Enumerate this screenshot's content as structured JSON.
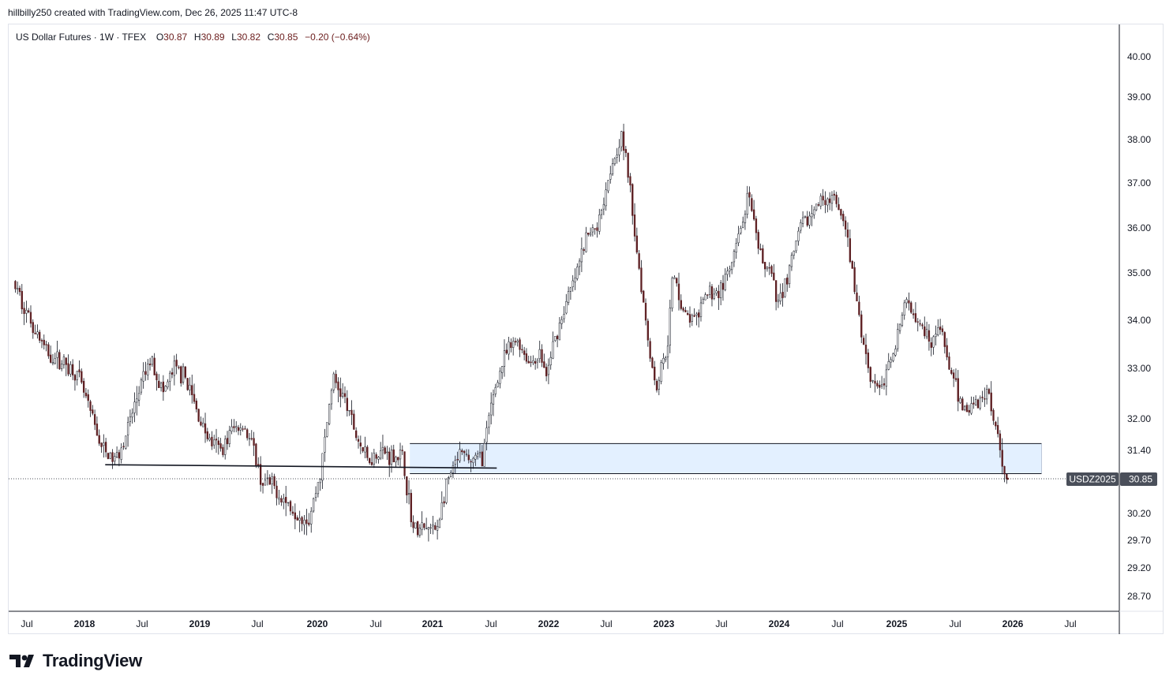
{
  "header": {
    "attribution": "hillbilly250 created with TradingView.com, Dec 26, 2025 11:47 UTC-8"
  },
  "legend": {
    "symbol": "US Dollar Futures · 1W · TFEX",
    "open_label": "O",
    "open": "30.87",
    "high_label": "H",
    "high": "30.89",
    "low_label": "L",
    "low": "30.82",
    "close_label": "C",
    "close": "30.85",
    "change": "−0.20 (−0.64%)"
  },
  "brand": {
    "name": "TradingView"
  },
  "price_tag": {
    "symbol": "USDZ2025",
    "price": "30.85"
  },
  "chart_data": {
    "type": "candlestick",
    "timeframe": "1W",
    "x_range": [
      "2017-06",
      "2026-08"
    ],
    "ylim": [
      28.45,
      40.6
    ],
    "y_ticks": [
      "40.00",
      "39.00",
      "38.00",
      "37.00",
      "36.00",
      "35.00",
      "34.00",
      "33.00",
      "32.00",
      "31.40",
      "30.20",
      "29.70",
      "29.20",
      "28.70"
    ],
    "x_ticks": [
      {
        "label": "Jul",
        "date": 2017.5
      },
      {
        "label": "2018",
        "date": 2018.0
      },
      {
        "label": "Jul",
        "date": 2018.5
      },
      {
        "label": "2019",
        "date": 2019.0
      },
      {
        "label": "Jul",
        "date": 2019.5
      },
      {
        "label": "2020",
        "date": 2020.0
      },
      {
        "label": "Jul",
        "date": 2020.5
      },
      {
        "label": "2021",
        "date": 2021.0
      },
      {
        "label": "Jul",
        "date": 2021.5
      },
      {
        "label": "2022",
        "date": 2022.0
      },
      {
        "label": "Jul",
        "date": 2022.5
      },
      {
        "label": "2023",
        "date": 2023.0
      },
      {
        "label": "Jul",
        "date": 2023.5
      },
      {
        "label": "2024",
        "date": 2024.0
      },
      {
        "label": "Jul",
        "date": 2024.5
      },
      {
        "label": "2025",
        "date": 2025.0
      },
      {
        "label": "Jul",
        "date": 2025.5
      },
      {
        "label": "2026",
        "date": 2026.0
      },
      {
        "label": "Jul",
        "date": 2026.5
      }
    ],
    "price_path": [
      [
        2017.4,
        34.8
      ],
      [
        2017.55,
        34.0
      ],
      [
        2017.7,
        33.3
      ],
      [
        2017.85,
        33.1
      ],
      [
        2017.95,
        32.9
      ],
      [
        2018.0,
        32.6
      ],
      [
        2018.1,
        31.9
      ],
      [
        2018.18,
        31.4
      ],
      [
        2018.28,
        31.2
      ],
      [
        2018.38,
        31.7
      ],
      [
        2018.5,
        32.6
      ],
      [
        2018.6,
        33.2
      ],
      [
        2018.7,
        32.5
      ],
      [
        2018.8,
        33.0
      ],
      [
        2018.9,
        32.8
      ],
      [
        2019.0,
        32.1
      ],
      [
        2019.1,
        31.6
      ],
      [
        2019.2,
        31.4
      ],
      [
        2019.3,
        31.8
      ],
      [
        2019.4,
        31.9
      ],
      [
        2019.5,
        31.3
      ],
      [
        2019.55,
        30.8
      ],
      [
        2019.65,
        30.7
      ],
      [
        2019.8,
        30.3
      ],
      [
        2019.95,
        30.1
      ],
      [
        2020.05,
        31.0
      ],
      [
        2020.15,
        32.8
      ],
      [
        2020.25,
        32.4
      ],
      [
        2020.35,
        31.7
      ],
      [
        2020.45,
        31.2
      ],
      [
        2020.55,
        31.4
      ],
      [
        2020.65,
        31.3
      ],
      [
        2020.75,
        31.3
      ],
      [
        2020.85,
        29.9
      ],
      [
        2020.95,
        29.9
      ],
      [
        2021.05,
        29.9
      ],
      [
        2021.15,
        30.8
      ],
      [
        2021.25,
        31.3
      ],
      [
        2021.35,
        31.2
      ],
      [
        2021.45,
        31.3
      ],
      [
        2021.55,
        32.6
      ],
      [
        2021.65,
        33.3
      ],
      [
        2021.75,
        33.6
      ],
      [
        2021.85,
        33.1
      ],
      [
        2021.95,
        33.3
      ],
      [
        2022.0,
        32.8
      ],
      [
        2022.05,
        33.4
      ],
      [
        2022.15,
        34.2
      ],
      [
        2022.25,
        34.9
      ],
      [
        2022.35,
        35.8
      ],
      [
        2022.45,
        36.1
      ],
      [
        2022.55,
        37.3
      ],
      [
        2022.65,
        38.1
      ],
      [
        2022.7,
        37.4
      ],
      [
        2022.8,
        35.2
      ],
      [
        2022.9,
        33.3
      ],
      [
        2022.95,
        32.6
      ],
      [
        2023.05,
        33.5
      ],
      [
        2023.1,
        35.0
      ],
      [
        2023.2,
        34.1
      ],
      [
        2023.3,
        34.0
      ],
      [
        2023.4,
        34.6
      ],
      [
        2023.5,
        34.6
      ],
      [
        2023.6,
        35.1
      ],
      [
        2023.7,
        36.1
      ],
      [
        2023.75,
        36.7
      ],
      [
        2023.85,
        35.4
      ],
      [
        2023.95,
        35.0
      ],
      [
        2024.0,
        34.3
      ],
      [
        2024.1,
        35.0
      ],
      [
        2024.2,
        36.0
      ],
      [
        2024.3,
        36.3
      ],
      [
        2024.4,
        36.7
      ],
      [
        2024.5,
        36.6
      ],
      [
        2024.6,
        35.8
      ],
      [
        2024.7,
        34.0
      ],
      [
        2024.8,
        32.8
      ],
      [
        2024.9,
        32.6
      ],
      [
        2025.0,
        33.5
      ],
      [
        2025.1,
        34.4
      ],
      [
        2025.2,
        34.1
      ],
      [
        2025.3,
        33.6
      ],
      [
        2025.4,
        33.8
      ],
      [
        2025.5,
        32.7
      ],
      [
        2025.6,
        32.2
      ],
      [
        2025.7,
        32.3
      ],
      [
        2025.8,
        32.6
      ],
      [
        2025.85,
        32.1
      ],
      [
        2025.9,
        31.6
      ],
      [
        2025.95,
        30.85
      ]
    ],
    "zone": {
      "x_from": 2020.8,
      "x_to": 2026.25,
      "y_top": 31.53,
      "y_bottom": 30.95,
      "fill": "#e3f0ff",
      "stroke": "#131722"
    },
    "trendline": {
      "x_from": 2018.18,
      "y_from": 31.0,
      "x_to": 2021.55,
      "y_to": 30.95,
      "color": "#131722"
    },
    "last_price_line": {
      "value": 30.85,
      "style": "dotted"
    },
    "candle_colors": {
      "up": "#ffffff",
      "down": "#5d1f22",
      "wick": "#131722"
    },
    "axis_color": "#131722"
  }
}
